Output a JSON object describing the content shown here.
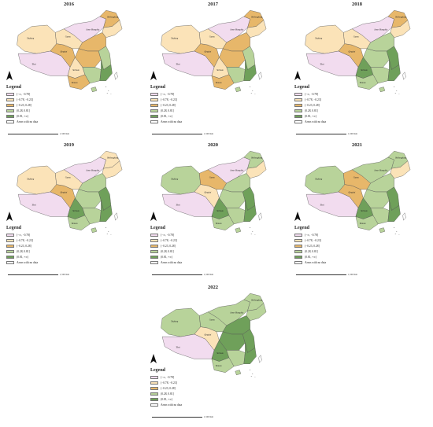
{
  "panels": [
    {
      "year": "2016",
      "classes": {
        "xinjiang": 1,
        "tibet": 0,
        "qinghai": 2,
        "gansu": 1,
        "innermongolia": 0,
        "heilongjiang": 2,
        "northeast": 1,
        "north": 2,
        "central": 2,
        "sichuan": 1,
        "southwest": 2,
        "east": 3,
        "south": 3,
        "southeast": 4,
        "hainan": 3,
        "taiwan": 5
      }
    },
    {
      "year": "2017",
      "classes": {
        "xinjiang": 1,
        "tibet": 0,
        "qinghai": 2,
        "gansu": 1,
        "innermongolia": 0,
        "heilongjiang": 2,
        "northeast": 1,
        "north": 2,
        "central": 2,
        "sichuan": 1,
        "southwest": 2,
        "east": 3,
        "south": 3,
        "southeast": 4,
        "hainan": 3,
        "taiwan": 5
      }
    },
    {
      "year": "2018",
      "classes": {
        "xinjiang": 1,
        "tibet": 0,
        "qinghai": 2,
        "gansu": 1,
        "innermongolia": 0,
        "heilongjiang": 2,
        "northeast": 1,
        "north": 3,
        "central": 3,
        "sichuan": 4,
        "southwest": 3,
        "east": 4,
        "south": 3,
        "southeast": 4,
        "hainan": 3,
        "taiwan": 5
      }
    },
    {
      "year": "2019",
      "classes": {
        "xinjiang": 1,
        "tibet": 0,
        "qinghai": 2,
        "gansu": 1,
        "innermongolia": 0,
        "heilongjiang": 1,
        "northeast": 1,
        "north": 3,
        "central": 3,
        "sichuan": 4,
        "southwest": 3,
        "east": 4,
        "south": 3,
        "southeast": 4,
        "hainan": 3,
        "taiwan": 5
      }
    },
    {
      "year": "2020",
      "classes": {
        "xinjiang": 3,
        "tibet": 0,
        "qinghai": 1,
        "gansu": 2,
        "innermongolia": 0,
        "heilongjiang": 3,
        "northeast": 1,
        "north": 3,
        "central": 3,
        "sichuan": 4,
        "southwest": 3,
        "east": 4,
        "south": 3,
        "southeast": 4,
        "hainan": 3,
        "taiwan": 5
      }
    },
    {
      "year": "2021",
      "classes": {
        "xinjiang": 3,
        "tibet": 0,
        "qinghai": 2,
        "gansu": 2,
        "innermongolia": 3,
        "heilongjiang": 3,
        "northeast": 1,
        "north": 3,
        "central": 3,
        "sichuan": 4,
        "southwest": 3,
        "east": 4,
        "south": 3,
        "southeast": 4,
        "hainan": 3,
        "taiwan": 5
      }
    },
    {
      "year": "2022",
      "classes": {
        "xinjiang": 3,
        "tibet": 0,
        "qinghai": 1,
        "gansu": 3,
        "innermongolia": 3,
        "heilongjiang": 3,
        "northeast": 3,
        "north": 4,
        "central": 4,
        "sichuan": 4,
        "southwest": 3,
        "east": 4,
        "south": 3,
        "southeast": 4,
        "hainan": 3,
        "taiwan": 5
      }
    }
  ],
  "legend": {
    "title": "Legend",
    "items": [
      {
        "label": "(−∞, −0.78]",
        "color": "#f2dcef"
      },
      {
        "label": "(−0.78, −0.23]",
        "color": "#fbe3b8"
      },
      {
        "label": "(−0.23, 0.28]",
        "color": "#e7b76a"
      },
      {
        "label": "(0.28, 0.81]",
        "color": "#b8d39a"
      },
      {
        "label": "(0.81, +∞)",
        "color": "#6fa05a"
      },
      {
        "label": "Areas with no data",
        "color": "#ffffff"
      }
    ]
  },
  "labels": {
    "xinjiang": "Xinjiang",
    "tibet": "Tibet",
    "qinghai": "Qinghai",
    "gansu": "Gansu",
    "innermongolia": "Inner Mongolia",
    "heilongjiang": "Heilongjiang",
    "sichuan": "Sichuan",
    "yunnan": "Yunnan"
  },
  "scale_label": "1,500 Km"
}
